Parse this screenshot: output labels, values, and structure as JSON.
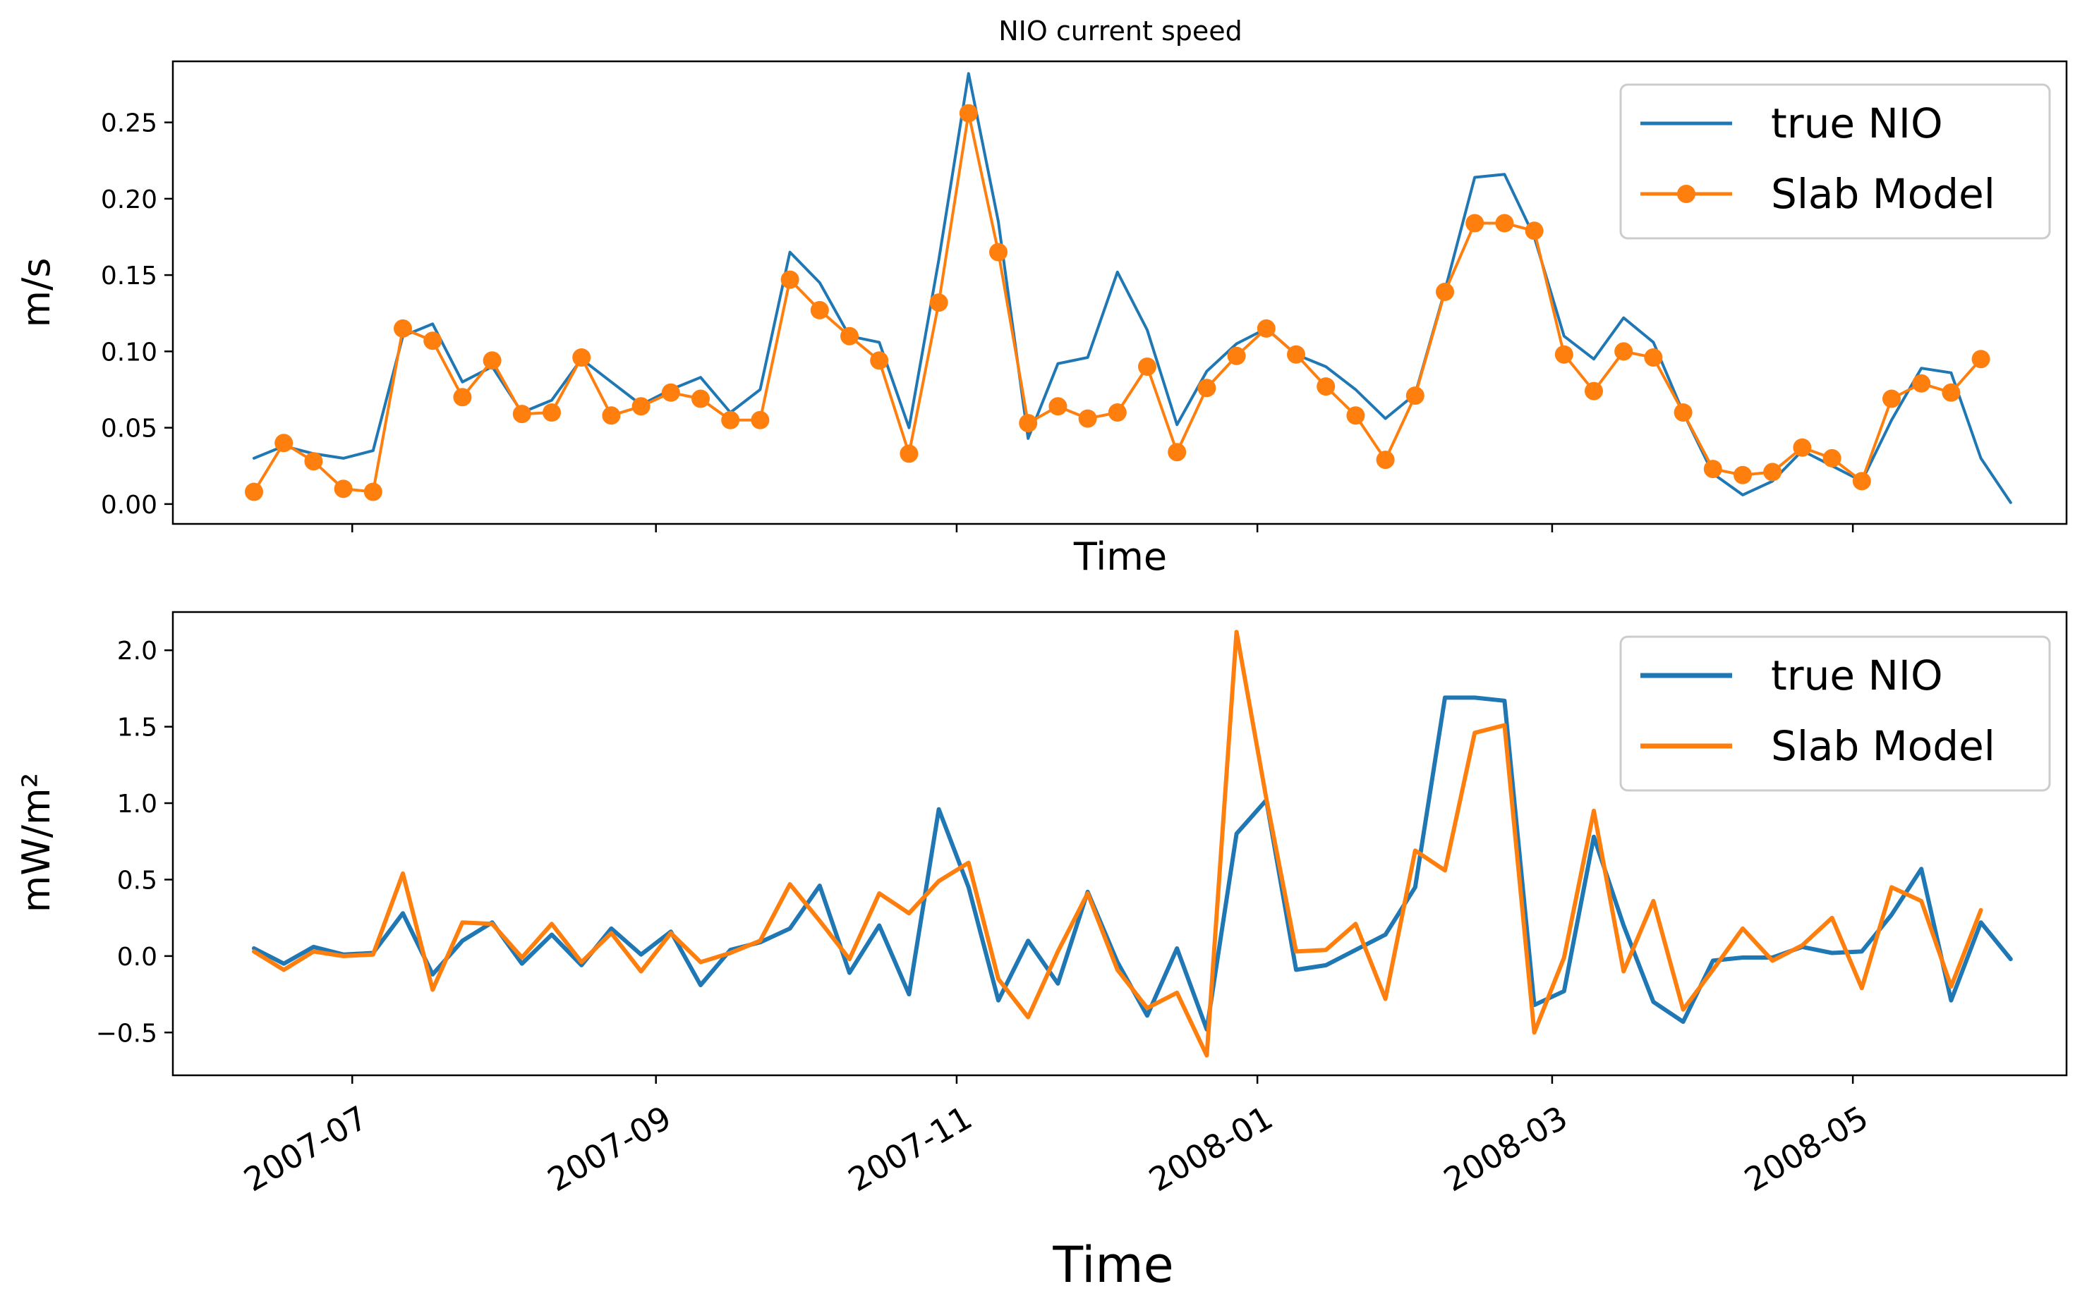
{
  "colors": {
    "true_nio": "#1f77b4",
    "slab_model": "#ff7f0e",
    "axes": "#000000",
    "legend_border": "#cccccc"
  },
  "chart_data": [
    {
      "type": "line",
      "title": "NIO current speed",
      "xlabel": "Time",
      "ylabel": "m/s",
      "ylim": [
        -0.013,
        0.29
      ],
      "yticks": [
        0.0,
        0.05,
        0.1,
        0.15,
        0.2,
        0.25
      ],
      "ytick_labels": [
        "0.00",
        "0.05",
        "0.10",
        "0.15",
        "0.20",
        "0.25"
      ],
      "legend_position": "top-right",
      "series": [
        {
          "name": "true NIO",
          "marker": "none",
          "x": [
            0,
            1,
            2,
            3,
            4,
            5,
            6,
            7,
            8,
            9,
            10,
            11,
            12,
            13,
            14,
            15,
            16,
            17,
            18,
            19,
            20,
            21,
            22,
            23,
            24,
            25,
            26,
            27,
            28,
            29,
            30,
            31,
            32,
            33,
            34,
            35,
            36,
            37,
            38,
            39,
            40,
            41,
            42,
            43,
            44,
            45,
            46,
            47,
            48,
            49,
            50,
            51,
            52,
            53,
            54,
            55,
            56,
            57,
            58,
            59
          ],
          "values": [
            0.03,
            0.038,
            0.033,
            0.03,
            0.035,
            0.11,
            0.118,
            0.08,
            0.09,
            0.06,
            0.068,
            0.095,
            0.08,
            0.065,
            0.075,
            0.083,
            0.06,
            0.075,
            0.165,
            0.145,
            0.11,
            0.106,
            0.05,
            0.16,
            0.282,
            0.185,
            0.043,
            0.092,
            0.096,
            0.152,
            0.114,
            0.052,
            0.087,
            0.105,
            0.115,
            0.098,
            0.09,
            0.075,
            0.056,
            0.072,
            0.14,
            0.214,
            0.216,
            0.175,
            0.11,
            0.095,
            0.122,
            0.106,
            0.06,
            0.02,
            0.006,
            0.015,
            0.035,
            0.025,
            0.015,
            0.055,
            0.089,
            0.086,
            0.03,
            0.001
          ]
        },
        {
          "name": "Slab Model",
          "marker": "circle",
          "x": [
            0,
            1,
            2,
            3,
            4,
            5,
            6,
            7,
            8,
            9,
            10,
            11,
            12,
            13,
            14,
            15,
            16,
            17,
            18,
            19,
            20,
            21,
            22,
            23,
            24,
            25,
            26,
            27,
            28,
            29,
            30,
            31,
            32,
            33,
            34,
            35,
            36,
            37,
            38,
            39,
            40,
            41,
            42,
            43,
            44,
            45,
            46,
            47,
            48,
            49,
            50,
            51,
            52,
            53,
            54,
            55,
            56,
            57,
            58
          ],
          "values": [
            0.008,
            0.04,
            0.028,
            0.01,
            0.008,
            0.115,
            0.107,
            0.07,
            0.094,
            0.059,
            0.06,
            0.096,
            0.058,
            0.064,
            0.073,
            0.069,
            0.055,
            0.055,
            0.147,
            0.127,
            0.11,
            0.094,
            0.033,
            0.132,
            0.256,
            0.165,
            0.053,
            0.064,
            0.056,
            0.06,
            0.09,
            0.034,
            0.076,
            0.097,
            0.115,
            0.098,
            0.077,
            0.058,
            0.029,
            0.071,
            0.139,
            0.184,
            0.184,
            0.179,
            0.098,
            0.074,
            0.1,
            0.096,
            0.06,
            0.023,
            0.019,
            0.021,
            0.037,
            0.03,
            0.015,
            0.069,
            0.079,
            0.073,
            0.095
          ]
        }
      ]
    },
    {
      "type": "line",
      "title": "",
      "xlabel": "Time",
      "ylabel": "mW/m²",
      "ylim": [
        -0.78,
        2.25
      ],
      "yticks": [
        -0.5,
        0.0,
        0.5,
        1.0,
        1.5,
        2.0
      ],
      "ytick_labels": [
        "−0.5",
        "0.0",
        "0.5",
        "1.0",
        "1.5",
        "2.0"
      ],
      "xtick_labels": [
        "2007-07",
        "2007-09",
        "2007-11",
        "2008-01",
        "2008-03",
        "2008-05"
      ],
      "xtick_positions": [
        3.3,
        13.5,
        23.6,
        33.7,
        43.6,
        53.7
      ],
      "legend_position": "top-right",
      "series": [
        {
          "name": "true NIO",
          "marker": "none",
          "x": [
            0,
            1,
            2,
            3,
            4,
            5,
            6,
            7,
            8,
            9,
            10,
            11,
            12,
            13,
            14,
            15,
            16,
            17,
            18,
            19,
            20,
            21,
            22,
            23,
            24,
            25,
            26,
            27,
            28,
            29,
            30,
            31,
            32,
            33,
            34,
            35,
            36,
            37,
            38,
            39,
            40,
            41,
            42,
            43,
            44,
            45,
            46,
            47,
            48,
            49,
            50,
            51,
            52,
            53,
            54,
            55,
            56,
            57,
            58,
            59
          ],
          "values": [
            0.05,
            -0.05,
            0.06,
            0.01,
            0.02,
            0.28,
            -0.12,
            0.1,
            0.22,
            -0.05,
            0.14,
            -0.06,
            0.18,
            0.01,
            0.16,
            -0.19,
            0.04,
            0.09,
            0.18,
            0.46,
            -0.11,
            0.2,
            -0.25,
            0.96,
            0.45,
            -0.29,
            0.1,
            -0.18,
            0.42,
            -0.04,
            -0.39,
            0.05,
            -0.48,
            0.8,
            1.02,
            -0.09,
            -0.06,
            0.04,
            0.14,
            0.45,
            1.69,
            1.69,
            1.67,
            -0.32,
            -0.23,
            0.78,
            0.2,
            -0.3,
            -0.43,
            -0.03,
            -0.01,
            -0.01,
            0.06,
            0.02,
            0.03,
            0.27,
            0.57,
            -0.29,
            0.22,
            -0.02
          ]
        },
        {
          "name": "Slab Model",
          "marker": "none",
          "x": [
            0,
            1,
            2,
            3,
            4,
            5,
            6,
            7,
            8,
            9,
            10,
            11,
            12,
            13,
            14,
            15,
            16,
            17,
            18,
            19,
            20,
            21,
            22,
            23,
            24,
            25,
            26,
            27,
            28,
            29,
            30,
            31,
            32,
            33,
            34,
            35,
            36,
            37,
            38,
            39,
            40,
            41,
            42,
            43,
            44,
            45,
            46,
            47,
            48,
            49,
            50,
            51,
            52,
            53,
            54,
            55,
            56,
            57,
            58
          ],
          "values": [
            0.03,
            -0.09,
            0.03,
            0.0,
            0.01,
            0.54,
            -0.22,
            0.22,
            0.21,
            -0.01,
            0.21,
            -0.04,
            0.15,
            -0.1,
            0.15,
            -0.04,
            0.02,
            0.1,
            0.47,
            0.23,
            -0.02,
            0.41,
            0.28,
            0.49,
            0.61,
            -0.15,
            -0.4,
            0.03,
            0.41,
            -0.09,
            -0.34,
            -0.24,
            -0.65,
            2.12,
            1.03,
            0.03,
            0.04,
            0.21,
            -0.28,
            0.69,
            0.56,
            1.46,
            1.51,
            -0.5,
            -0.01,
            0.95,
            -0.1,
            0.36,
            -0.35,
            -0.09,
            0.18,
            -0.03,
            0.07,
            0.25,
            -0.21,
            0.45,
            0.36,
            -0.2,
            0.3
          ]
        }
      ]
    }
  ]
}
